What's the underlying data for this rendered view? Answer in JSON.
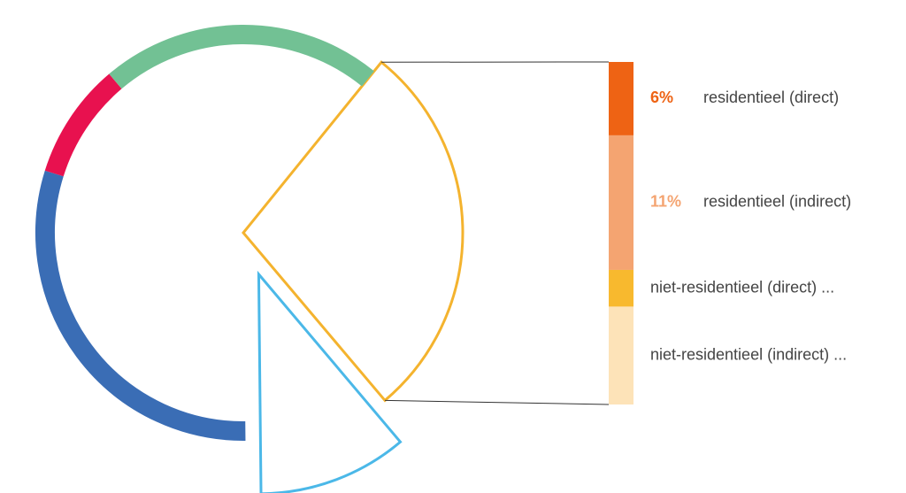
{
  "chart_data": {
    "type": "pie-of-bar",
    "categories": [
      null,
      null,
      null,
      null,
      null
    ],
    "values": [
      28,
      11,
      30,
      9,
      22
    ],
    "colors": [
      "#f4b32e",
      "#4bb8e8",
      "#3a6db5",
      "#e8114f",
      "#72c194"
    ],
    "styles": [
      "outline",
      "exploded",
      "ring",
      "ring",
      "ring"
    ],
    "breakdown": {
      "categories": [
        "residentieel (direct)",
        "residentieel (indirect)",
        "niet-residentieel (direct) ...",
        "niet-residentieel (indirect) ..."
      ],
      "values": [
        6,
        11,
        3,
        8
      ],
      "value_labels": [
        "6%",
        "11%",
        null,
        null
      ],
      "colors": [
        "#ee6314",
        "#f4a471",
        "#f8b92e",
        "#fde3b8"
      ]
    }
  }
}
